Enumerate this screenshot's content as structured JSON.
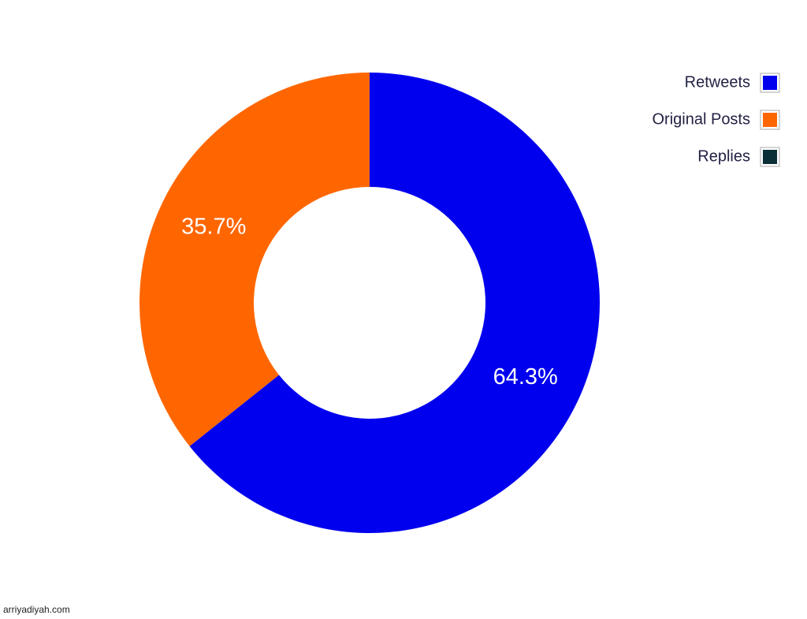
{
  "chart_data": {
    "type": "donut",
    "categories": [
      "Retweets",
      "Original Posts",
      "Replies"
    ],
    "values": [
      64.3,
      35.7,
      0
    ],
    "value_labels": [
      "64.3%",
      "35.7%",
      null
    ],
    "colors": [
      "#0000ee",
      "#ff6600",
      "#0b2f36"
    ],
    "legend": "top-right",
    "source": "arriyadiyah.com"
  }
}
